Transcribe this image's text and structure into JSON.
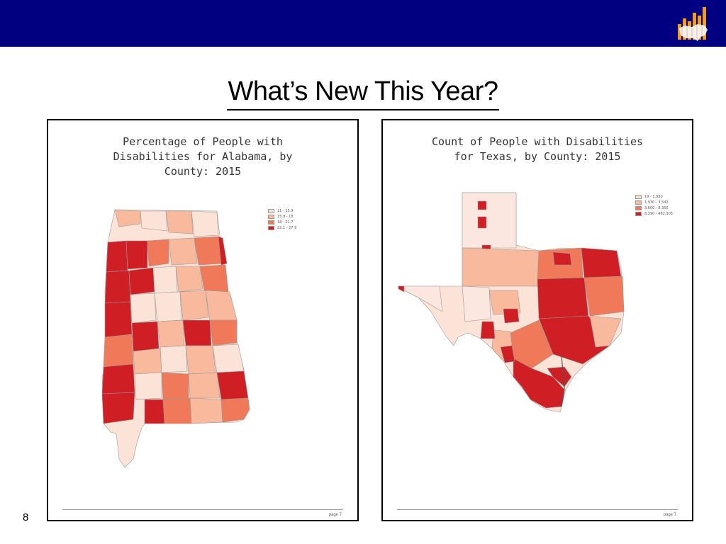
{
  "slide": {
    "title": "What’s New This Year?",
    "number": "8"
  },
  "left_map": {
    "title": "Percentage of People with\nDisabilities for Alabama, by\nCounty: 2015",
    "legend": [
      "11 - 15.9",
      "15.9 - 18",
      "18 - 21.7",
      "22.1 - 27.9"
    ],
    "legend_colors": [
      "#fce3d8",
      "#f9b99c",
      "#f0795a",
      "#cf1f25"
    ],
    "page_label": "page 7"
  },
  "right_map": {
    "title": "Count of People with Disabilities\nfor Texas, by County: 2015",
    "legend": [
      "19 - 1,930",
      "1,930 - 3,542",
      "3,600 - 8,350",
      "8,390 - 482,305"
    ],
    "legend_colors": [
      "#fce3d8",
      "#f9b99c",
      "#f0795a",
      "#cf1f25"
    ],
    "page_label": "page 7"
  },
  "colors": {
    "header_bar": "#000080",
    "logo_orange": "#f39c1e"
  },
  "icons": {
    "logo": "bar-chart-us-map-logo"
  }
}
